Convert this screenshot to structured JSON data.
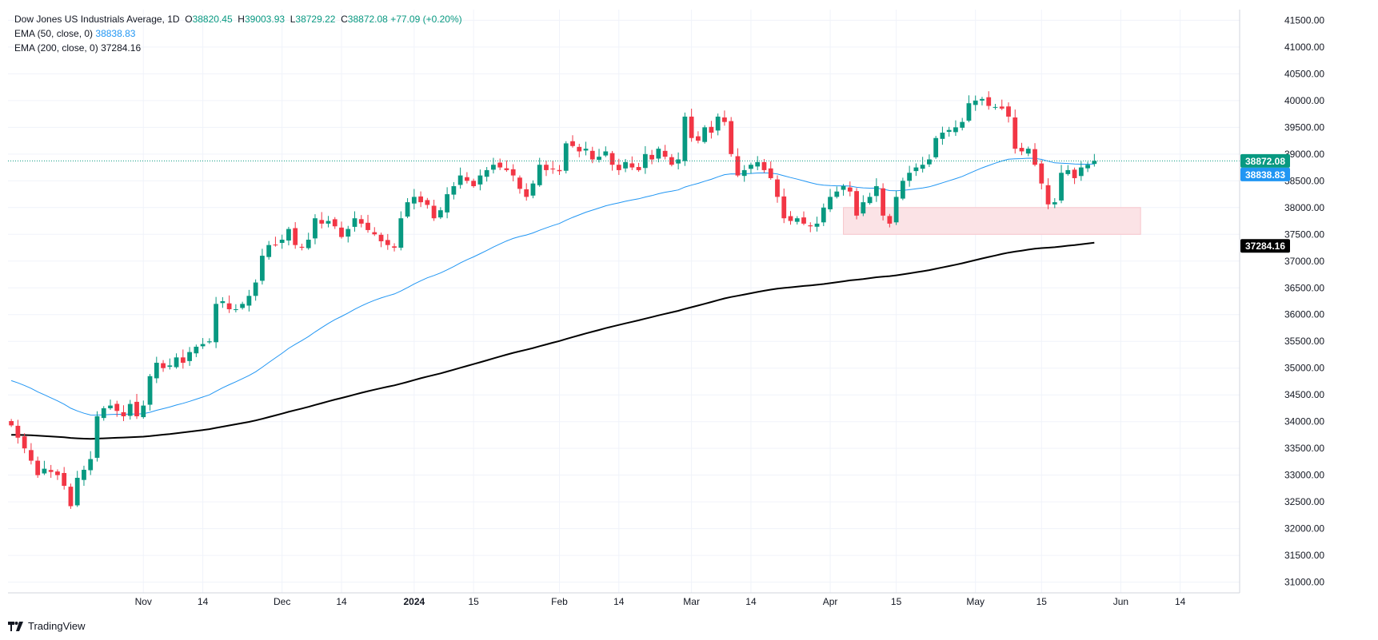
{
  "header": {
    "symbol": "Dow Jones US Industrials Average",
    "interval": "1D",
    "ohlc": {
      "o": "38820.45",
      "h": "39003.93",
      "l": "38729.22",
      "c": "38872.08",
      "chg": "+77.09",
      "chg_pct": "(+0.20%)"
    },
    "ema50_label": "EMA (50, close, 0)",
    "ema50_value": "38838.83",
    "ema200_label": "EMA (200, close, 0)",
    "ema200_value": "37284.16"
  },
  "brand": "TradingView",
  "colors": {
    "up": "#089981",
    "down": "#f23645",
    "ema50": "#2196f3",
    "ema200": "#000000",
    "grid": "#f0f3fa",
    "zone": "#fbe3e6",
    "last_line": "#089981"
  },
  "chart_data": {
    "type": "candlestick",
    "y_ticks": [
      31000,
      31500,
      32000,
      32500,
      33000,
      33500,
      34000,
      34500,
      35000,
      35500,
      36000,
      36500,
      37000,
      37500,
      38000,
      38500,
      39000,
      39500,
      40000,
      40500,
      41000,
      41500
    ],
    "ylim": [
      30800,
      41700
    ],
    "x_ticks": [
      {
        "label": "Nov",
        "index": 21
      },
      {
        "label": "14",
        "index": 30
      },
      {
        "label": "Dec",
        "index": 42
      },
      {
        "label": "14",
        "index": 51
      },
      {
        "label": "2024",
        "index": 62
      },
      {
        "label": "15",
        "index": 71
      },
      {
        "label": "Feb",
        "index": 84
      },
      {
        "label": "14",
        "index": 93
      },
      {
        "label": "Mar",
        "index": 104
      },
      {
        "label": "14",
        "index": 113
      },
      {
        "label": "Apr",
        "index": 125
      },
      {
        "label": "15",
        "index": 135
      },
      {
        "label": "May",
        "index": 147
      },
      {
        "label": "15",
        "index": 157
      },
      {
        "label": "Jun",
        "index": 169
      },
      {
        "label": "14",
        "index": 178
      }
    ],
    "x_range": [
      0.5,
      187
    ],
    "closes": [
      33930,
      33700,
      33500,
      33270,
      33000,
      33120,
      33060,
      33000,
      32800,
      32420,
      32950,
      33100,
      33300,
      34100,
      34250,
      34300,
      34200,
      34100,
      34330,
      34100,
      34300,
      34850,
      35100,
      35000,
      35050,
      35200,
      35100,
      35300,
      35400,
      35450,
      35500,
      36200,
      36250,
      36100,
      36100,
      36200,
      36350,
      36600,
      37100,
      37300,
      37300,
      37400,
      37600,
      37300,
      37250,
      37400,
      37800,
      37700,
      37750,
      37650,
      37450,
      37600,
      37800,
      37700,
      37580,
      37500,
      37370,
      37300,
      37250,
      37800,
      38100,
      38200,
      38100,
      38050,
      37800,
      37950,
      38250,
      38400,
      38600,
      38500,
      38400,
      38600,
      38700,
      38800,
      38750,
      38700,
      38600,
      38350,
      38200,
      38450,
      38800,
      38700,
      38720,
      38680,
      39200,
      39150,
      39050,
      39100,
      38900,
      38950,
      39050,
      38800,
      38700,
      38850,
      38750,
      38700,
      39000,
      38900,
      39100,
      38950,
      38800,
      38900,
      39700,
      39300,
      39250,
      39500,
      39400,
      39700,
      39600,
      39000,
      38600,
      38700,
      38800,
      38850,
      38700,
      38550,
      38200,
      37800,
      37750,
      37800,
      37700,
      37650,
      37700,
      38000,
      38200,
      38300,
      38400,
      38300,
      37850,
      38100,
      38200,
      38400,
      37850,
      37700,
      38200,
      38500,
      38650,
      38750,
      38800,
      38900,
      39300,
      39400,
      39450,
      39500,
      39600,
      39950,
      40000,
      40030,
      39900,
      39880,
      39850,
      39700,
      39100,
      39050,
      39100,
      38800,
      38450,
      38060,
      38100,
      38650,
      38700,
      38550,
      38750,
      38800,
      38872
    ],
    "series": [
      {
        "name": "EMA (50, close, 0)",
        "value": 38838.83
      },
      {
        "name": "EMA (200, close, 0)",
        "value": 37284.16
      }
    ],
    "last_price": 38872.08,
    "price_labels": [
      {
        "label": "38872.08",
        "value": 38872.08,
        "color": "#089981"
      },
      {
        "label": "38838.83",
        "value": 38838.83,
        "color": "#2196f3"
      },
      {
        "label": "37284.16",
        "value": 37284.16,
        "color": "#000000"
      }
    ],
    "support_zone": {
      "from_index": 127,
      "to_index": 172,
      "low": 37500,
      "high": 38000
    }
  }
}
